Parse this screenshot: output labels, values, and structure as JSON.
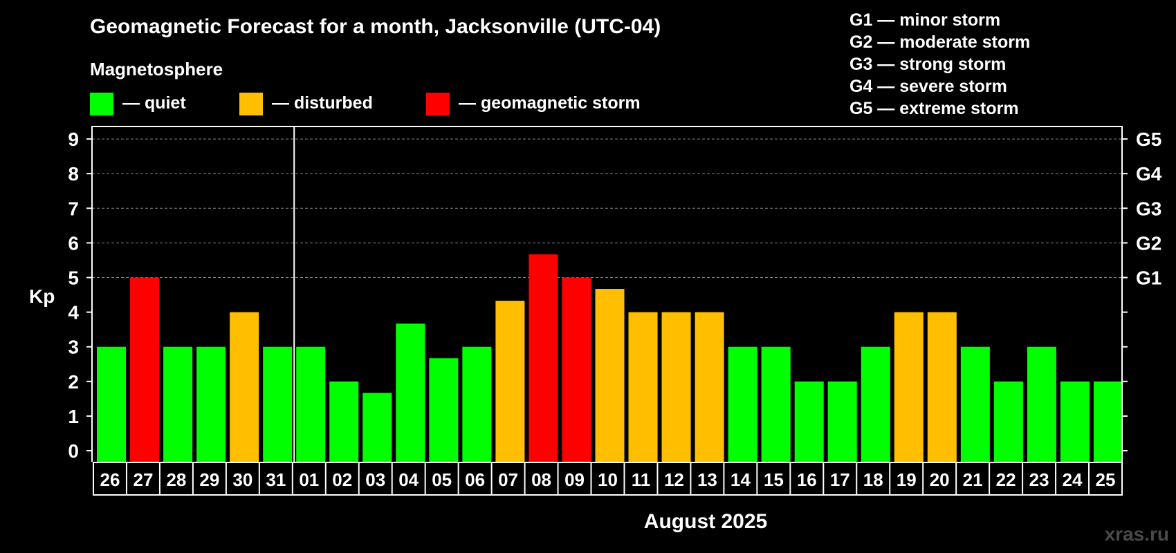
{
  "chart_data": {
    "type": "bar",
    "title": "Geomagnetic Forecast for a month, Jacksonville (UTC-04)",
    "subtitle": "Magnetosphere",
    "ylabel": "Kp",
    "xlabel": "August 2025",
    "ylim": [
      0,
      9
    ],
    "yticks": [
      "0",
      "1",
      "2",
      "3",
      "4",
      "5",
      "6",
      "7",
      "8",
      "9"
    ],
    "right_ticks": [
      {
        "value": 5,
        "label": "G1"
      },
      {
        "value": 6,
        "label": "G2"
      },
      {
        "value": 7,
        "label": "G3"
      },
      {
        "value": 8,
        "label": "G4"
      },
      {
        "value": 9,
        "label": "G5"
      }
    ],
    "legend": [
      {
        "key": "quiet",
        "label": "— quiet",
        "color": "#00ff00"
      },
      {
        "key": "disturbed",
        "label": "— disturbed",
        "color": "#ffbf00"
      },
      {
        "key": "storm",
        "label": "— geomagnetic storm",
        "color": "#ff0000"
      }
    ],
    "storm_scale": [
      "G1 — minor storm",
      "G2 — moderate storm",
      "G3 — strong storm",
      "G4 — severe storm",
      "G5 — extreme storm"
    ],
    "categories": [
      "26",
      "27",
      "28",
      "29",
      "30",
      "31",
      "01",
      "02",
      "03",
      "04",
      "05",
      "06",
      "07",
      "08",
      "09",
      "10",
      "11",
      "12",
      "13",
      "14",
      "15",
      "16",
      "17",
      "18",
      "19",
      "20",
      "21",
      "22",
      "23",
      "24",
      "25"
    ],
    "values": [
      3,
      5,
      3,
      3,
      4,
      3,
      3,
      2,
      1.67,
      3.67,
      2.67,
      3,
      4.33,
      5.67,
      5,
      4.67,
      4,
      4,
      4,
      3,
      3,
      2,
      2,
      3,
      4,
      4,
      3,
      2,
      3,
      2,
      2
    ],
    "levels": [
      "quiet",
      "storm",
      "quiet",
      "quiet",
      "disturbed",
      "quiet",
      "quiet",
      "quiet",
      "quiet",
      "quiet",
      "quiet",
      "quiet",
      "disturbed",
      "storm",
      "storm",
      "disturbed",
      "disturbed",
      "disturbed",
      "disturbed",
      "quiet",
      "quiet",
      "quiet",
      "quiet",
      "quiet",
      "disturbed",
      "disturbed",
      "quiet",
      "quiet",
      "quiet",
      "quiet",
      "quiet"
    ],
    "month_divider_after": "31",
    "grid": "dashed at 6, 7, 8, 9"
  },
  "watermark": "xras.ru"
}
